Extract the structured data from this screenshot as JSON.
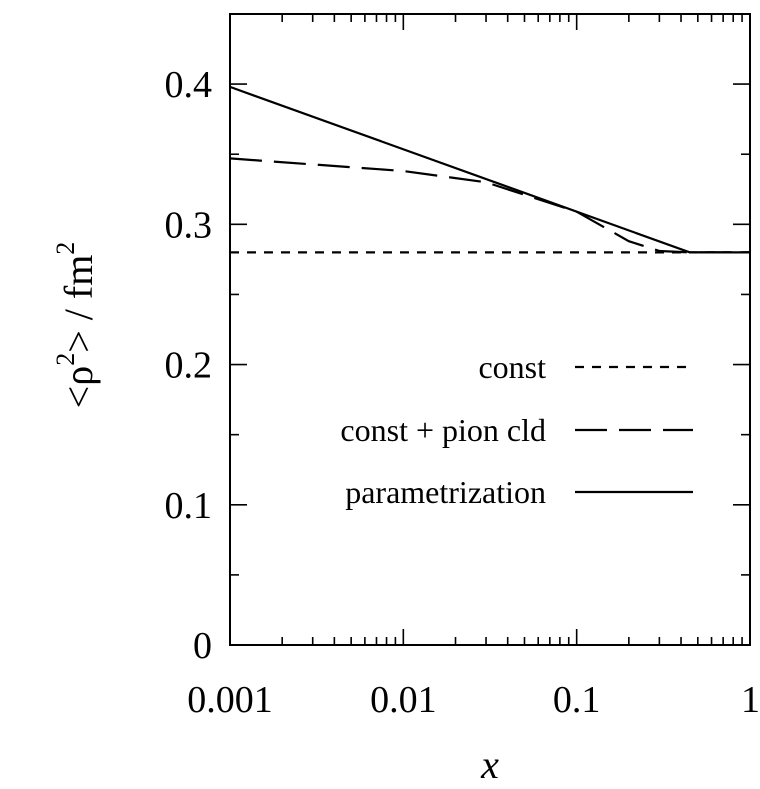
{
  "chart_data": {
    "type": "line",
    "xlabel": "x",
    "ylabel_parts": {
      "open": "<ρ",
      "exp1": "2",
      "mid": "> / fm",
      "exp2": "2"
    },
    "x_scale": "log",
    "xlim": [
      0.001,
      1
    ],
    "ylim": [
      0,
      0.45
    ],
    "x_ticks": [
      {
        "value": 0.001,
        "label": "0.001"
      },
      {
        "value": 0.01,
        "label": "0.01"
      },
      {
        "value": 0.1,
        "label": "0.1"
      },
      {
        "value": 1,
        "label": "1"
      }
    ],
    "y_ticks": [
      {
        "value": 0,
        "label": "0"
      },
      {
        "value": 0.1,
        "label": "0.1"
      },
      {
        "value": 0.2,
        "label": "0.2"
      },
      {
        "value": 0.3,
        "label": "0.3"
      },
      {
        "value": 0.4,
        "label": "0.4"
      }
    ],
    "grid": false,
    "legend_position": "center-right",
    "series": [
      {
        "name": "const",
        "style": "dashed-short",
        "x": [
          0.001,
          1
        ],
        "y": [
          0.28,
          0.28
        ]
      },
      {
        "name": "const + pion cld",
        "style": "dashed-long",
        "x": [
          0.001,
          0.01,
          0.03,
          0.1,
          0.2,
          0.3,
          0.45,
          1
        ],
        "y": [
          0.347,
          0.338,
          0.33,
          0.309,
          0.288,
          0.281,
          0.28,
          0.28
        ]
      },
      {
        "name": "parametrization",
        "style": "solid",
        "x": [
          0.001,
          0.45,
          1
        ],
        "y": [
          0.398,
          0.28,
          0.28
        ]
      }
    ]
  }
}
